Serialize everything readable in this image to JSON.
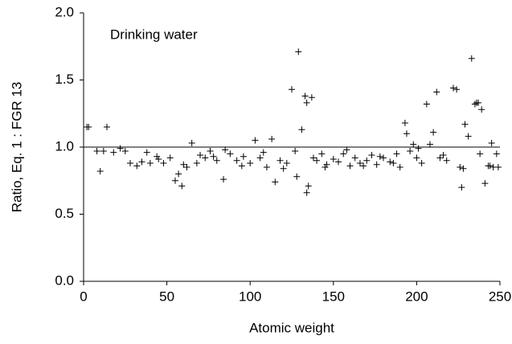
{
  "chart_data": {
    "type": "scatter",
    "annotation": "Drinking water",
    "xlabel": "Atomic weight",
    "ylabel": "Ratio, Eq. 1 : FGR 13",
    "xlim": [
      0,
      250
    ],
    "ylim": [
      0,
      2
    ],
    "xticks": [
      0,
      50,
      100,
      150,
      200,
      250
    ],
    "yticks": [
      {
        "value": 0,
        "label": "0.0"
      },
      0.5,
      {
        "value": 1,
        "label": "1.0"
      },
      1.5,
      {
        "value": 2,
        "label": "2.0"
      }
    ],
    "hline": 1,
    "color": "#000000",
    "x": [
      2,
      3,
      8,
      10,
      12,
      14,
      18,
      22,
      25,
      28,
      32,
      35,
      38,
      40,
      44,
      48,
      52,
      55,
      57,
      59,
      62,
      65,
      68,
      70,
      73,
      76,
      80,
      84,
      88,
      92,
      96,
      100,
      103,
      106,
      110,
      113,
      115,
      118,
      122,
      125,
      128,
      129,
      131,
      133,
      134,
      135,
      134,
      137,
      140,
      143,
      146,
      150,
      153,
      156,
      160,
      163,
      166,
      170,
      173,
      176,
      180,
      184,
      188,
      190,
      193,
      194,
      196,
      198,
      200,
      203,
      206,
      208,
      210,
      212,
      214,
      216,
      222,
      224,
      226,
      227,
      229,
      231,
      233,
      235,
      236,
      237,
      239,
      241,
      243,
      245,
      246,
      248,
      249,
      45,
      60,
      78,
      85,
      95,
      108,
      120,
      127,
      138,
      145,
      158,
      168,
      178,
      186,
      201,
      218,
      228,
      238,
      244
    ],
    "values": [
      1.15,
      1.15,
      0.97,
      0.82,
      0.97,
      1.15,
      0.96,
      0.99,
      0.97,
      0.88,
      0.86,
      0.89,
      0.96,
      0.88,
      0.93,
      0.88,
      0.92,
      0.75,
      0.8,
      0.71,
      0.85,
      1.03,
      0.88,
      0.94,
      0.92,
      0.97,
      0.9,
      0.76,
      0.95,
      0.9,
      0.93,
      0.88,
      1.05,
      0.92,
      0.85,
      1.06,
      0.74,
      0.9,
      0.88,
      1.43,
      0.78,
      1.71,
      1.13,
      1.38,
      1.33,
      0.71,
      0.66,
      1.37,
      0.9,
      0.95,
      0.87,
      0.91,
      0.89,
      0.95,
      0.86,
      0.92,
      0.88,
      0.9,
      0.94,
      0.87,
      0.92,
      0.89,
      0.95,
      0.85,
      1.18,
      1.1,
      0.97,
      1.02,
      0.92,
      0.88,
      1.32,
      1.02,
      1.11,
      1.41,
      0.92,
      0.94,
      1.44,
      1.43,
      0.85,
      0.7,
      1.17,
      1.08,
      1.66,
      1.32,
      1.33,
      1.33,
      1.28,
      0.73,
      0.86,
      1.03,
      0.85,
      0.95,
      0.85,
      0.91,
      0.87,
      0.93,
      0.98,
      0.86,
      0.96,
      0.84,
      0.97,
      0.92,
      0.85,
      0.98,
      0.86,
      0.93,
      0.88,
      0.99,
      0.9,
      0.84,
      0.95,
      0.86
    ]
  }
}
